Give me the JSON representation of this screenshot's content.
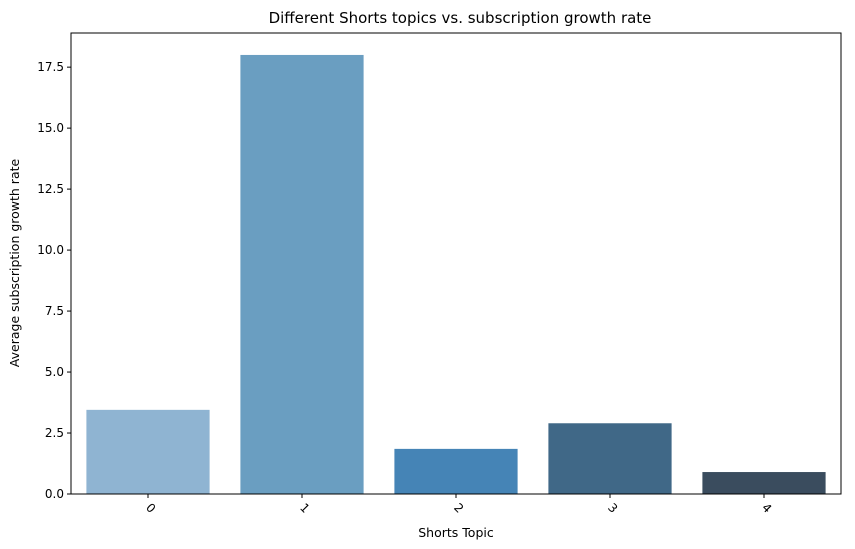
{
  "chart_data": {
    "type": "bar",
    "title": "Different Shorts topics vs. subscription growth rate",
    "xlabel": "Shorts Topic",
    "ylabel": "Average subscription growth rate",
    "categories": [
      "0",
      "1",
      "2",
      "3",
      "4"
    ],
    "values": [
      3.45,
      18.0,
      1.85,
      2.9,
      0.9
    ],
    "colors": [
      "#8fb4d2",
      "#6a9ec1",
      "#4584b6",
      "#406887",
      "#3a4c5e"
    ],
    "ylim": [
      0,
      18.9
    ],
    "yticks": [
      0.0,
      2.5,
      5.0,
      7.5,
      10.0,
      12.5,
      15.0,
      17.5
    ],
    "ytick_labels": [
      "0.0",
      "2.5",
      "5.0",
      "7.5",
      "10.0",
      "12.5",
      "15.0",
      "17.5"
    ],
    "grid": false,
    "legend": "none",
    "xtick_rotation": 45
  }
}
